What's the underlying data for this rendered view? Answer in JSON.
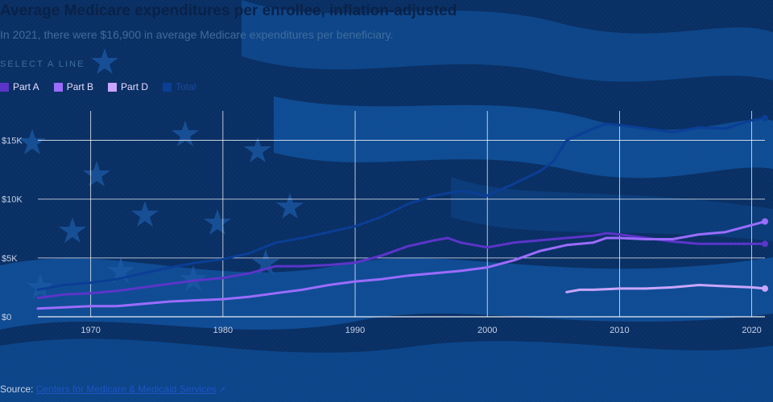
{
  "header": {
    "title": "Average Medicare expenditures per enrollee, inflation-adjusted",
    "subtitle": "In 2021, there were $16,900 in average Medicare expenditures per beneficiary."
  },
  "select_label": "SELECT A LINE",
  "source": {
    "label": "Source:",
    "link_text": "Centers for Medicare & Medicaid Services",
    "link_icon": "external-link-icon"
  },
  "chart_data": {
    "type": "line",
    "title": "Average Medicare expenditures per enrollee, inflation-adjusted",
    "subtitle": "In 2021, there were $16,900 in average Medicare expenditures per beneficiary.",
    "xlabel": "",
    "ylabel": "",
    "xlim": [
      1966,
      2021
    ],
    "ylim": [
      0,
      17500
    ],
    "x_ticks": [
      1970,
      1980,
      1990,
      2000,
      2010,
      2020
    ],
    "x_tick_labels": [
      "1970",
      "1980",
      "1990",
      "2000",
      "2010",
      "2020"
    ],
    "y_ticks": [
      0,
      5000,
      10000,
      15000
    ],
    "y_tick_labels": [
      "$0",
      "$5K",
      "$10K",
      "$15K"
    ],
    "grid": true,
    "legend_position": "top-left",
    "series": [
      {
        "name": "Part A",
        "color": "#5b35c9",
        "x": [
          1966,
          1968,
          1970,
          1972,
          1974,
          1976,
          1978,
          1980,
          1982,
          1984,
          1986,
          1988,
          1990,
          1992,
          1994,
          1996,
          1997,
          1998,
          2000,
          2002,
          2004,
          2006,
          2008,
          2009,
          2010,
          2012,
          2014,
          2016,
          2018,
          2020,
          2021
        ],
        "y": [
          1600,
          1900,
          2000,
          2200,
          2500,
          2800,
          3100,
          3300,
          3700,
          4300,
          4300,
          4400,
          4600,
          5200,
          6000,
          6500,
          6700,
          6300,
          5900,
          6300,
          6500,
          6700,
          6900,
          7100,
          7000,
          6700,
          6400,
          6200,
          6200,
          6200,
          6200
        ]
      },
      {
        "name": "Part B",
        "color": "#9b6cff",
        "x": [
          1966,
          1968,
          1970,
          1972,
          1974,
          1976,
          1978,
          1980,
          1982,
          1984,
          1986,
          1988,
          1990,
          1992,
          1994,
          1996,
          1998,
          2000,
          2002,
          2004,
          2006,
          2008,
          2009,
          2010,
          2012,
          2014,
          2016,
          2018,
          2019,
          2020,
          2021
        ],
        "y": [
          700,
          800,
          900,
          900,
          1100,
          1300,
          1400,
          1500,
          1700,
          2000,
          2300,
          2700,
          3000,
          3200,
          3500,
          3700,
          3900,
          4200,
          4800,
          5600,
          6100,
          6300,
          6700,
          6700,
          6600,
          6600,
          7000,
          7200,
          7500,
          7800,
          8100
        ]
      },
      {
        "name": "Part D",
        "color": "#c9a6ff",
        "x": [
          2006,
          2007,
          2008,
          2010,
          2012,
          2014,
          2016,
          2018,
          2020,
          2021
        ],
        "y": [
          2100,
          2300,
          2300,
          2400,
          2400,
          2500,
          2700,
          2600,
          2500,
          2400
        ]
      },
      {
        "name": "Total",
        "color": "#0b3e95",
        "x": [
          1966,
          1968,
          1970,
          1972,
          1974,
          1976,
          1978,
          1980,
          1982,
          1984,
          1986,
          1988,
          1990,
          1992,
          1994,
          1996,
          1998,
          2000,
          2002,
          2004,
          2005,
          2006,
          2008,
          2009,
          2010,
          2012,
          2014,
          2016,
          2018,
          2020,
          2021
        ],
        "y": [
          2300,
          2700,
          2900,
          3200,
          3700,
          4200,
          4600,
          4900,
          5400,
          6300,
          6700,
          7200,
          7700,
          8500,
          9600,
          10300,
          10700,
          10300,
          11300,
          12400,
          13200,
          15000,
          16000,
          16400,
          16300,
          16000,
          15700,
          16100,
          16000,
          16700,
          16900
        ]
      }
    ]
  }
}
